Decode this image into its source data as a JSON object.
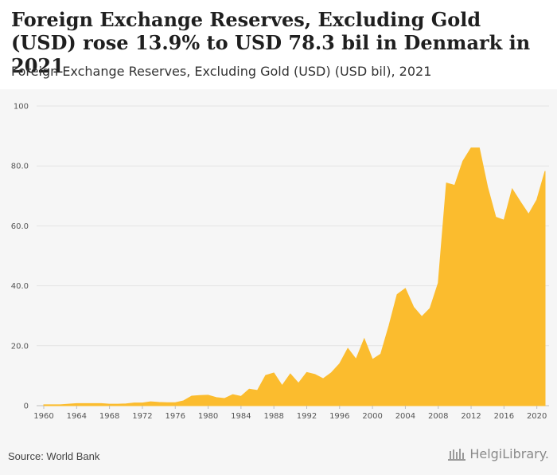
{
  "header": {
    "title": "Foreign Exchange Reserves, Excluding Gold (USD) rose 13.9% to USD 78.3 bil in Denmark in 2021",
    "subtitle": "Foreign Exchange Reserves, Excluding Gold (USD) (USD bil), 2021"
  },
  "footer": {
    "source": "Source: World Bank",
    "logo_text": "HelgiLibrary."
  },
  "colors": {
    "area_fill": "#fbbc2e",
    "grid": "#e4e4e4",
    "background": "#f6f6f6"
  },
  "chart_data": {
    "type": "area",
    "x": [
      1960,
      1961,
      1962,
      1963,
      1964,
      1965,
      1966,
      1967,
      1968,
      1969,
      1970,
      1971,
      1972,
      1973,
      1974,
      1975,
      1976,
      1977,
      1978,
      1979,
      1980,
      1981,
      1982,
      1983,
      1984,
      1985,
      1986,
      1987,
      1988,
      1989,
      1990,
      1991,
      1992,
      1993,
      1994,
      1995,
      1996,
      1997,
      1998,
      1999,
      2000,
      2001,
      2002,
      2003,
      2004,
      2005,
      2006,
      2007,
      2008,
      2009,
      2010,
      2011,
      2012,
      2013,
      2014,
      2015,
      2016,
      2017,
      2018,
      2019,
      2020,
      2021
    ],
    "values": [
      0.3,
      0.3,
      0.3,
      0.5,
      0.7,
      0.7,
      0.7,
      0.7,
      0.5,
      0.5,
      0.6,
      0.9,
      0.9,
      1.3,
      1.1,
      1.0,
      1.0,
      1.6,
      3.2,
      3.4,
      3.5,
      2.7,
      2.4,
      3.7,
      3.1,
      5.5,
      5.1,
      10.1,
      10.9,
      6.7,
      10.6,
      7.5,
      11.1,
      10.4,
      9.0,
      11.0,
      14.0,
      19.1,
      15.5,
      22.3,
      15.4,
      17.2,
      26.6,
      37.1,
      39.1,
      32.9,
      29.7,
      32.5,
      40.9,
      74.3,
      73.5,
      81.6,
      86.0,
      86.0,
      73.0,
      62.9,
      61.9,
      72.3,
      68.0,
      63.9,
      68.7,
      78.3
    ],
    "ylim": [
      0,
      100
    ],
    "yticks": [
      0,
      20.0,
      40.0,
      60.0,
      80.0,
      100
    ],
    "ytick_labels": [
      "0",
      "20.0",
      "40.0",
      "60.0",
      "80.0",
      "100"
    ],
    "xticks": [
      "1960",
      "1964",
      "1968",
      "1972",
      "1976",
      "1980",
      "1984",
      "1988",
      "1992",
      "1996",
      "2000",
      "2004",
      "2008",
      "2012",
      "2016",
      "2020"
    ],
    "grid": true
  }
}
